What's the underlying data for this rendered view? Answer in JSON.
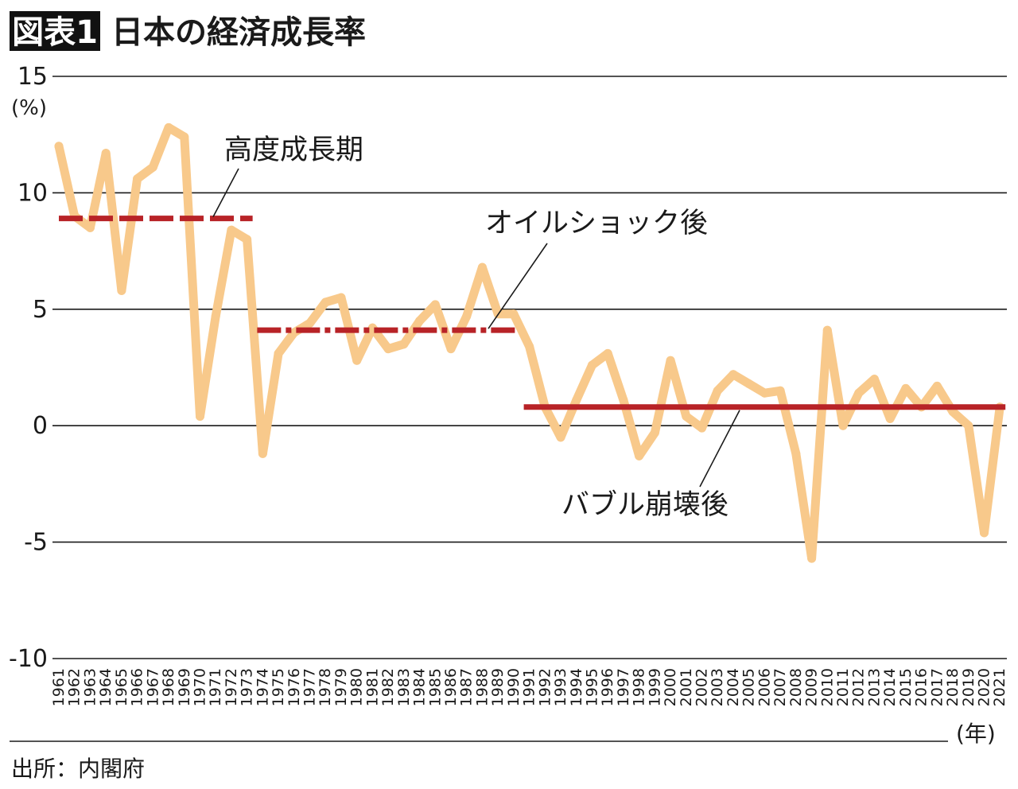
{
  "header": {
    "badge": "図表1",
    "title": "日本の経済成長率"
  },
  "chart_data": {
    "type": "line",
    "title": "日本の経済成長率",
    "ylabel": "(%)",
    "xlabel": "(年)",
    "ylim": [
      -10,
      15
    ],
    "yticks": [
      15,
      10,
      5,
      0,
      -5,
      -10
    ],
    "grid": true,
    "colors": {
      "series": "#f8c98b",
      "average": "#b82327"
    },
    "x": [
      "1961",
      "1962",
      "1963",
      "1964",
      "1965",
      "1966",
      "1967",
      "1968",
      "1969",
      "1970",
      "1971",
      "1972",
      "1973",
      "1974",
      "1975",
      "1976",
      "1977",
      "1978",
      "1979",
      "1980",
      "1981",
      "1982",
      "1983",
      "1984",
      "1985",
      "1986",
      "1987",
      "1988",
      "1989",
      "1990",
      "1991",
      "1992",
      "1993",
      "1994",
      "1995",
      "1996",
      "1997",
      "1998",
      "1999",
      "2000",
      "2001",
      "2002",
      "2003",
      "2004",
      "2005",
      "2006",
      "2007",
      "2008",
      "2009",
      "2010",
      "2011",
      "2012",
      "2013",
      "2014",
      "2015",
      "2016",
      "2017",
      "2018",
      "2019",
      "2020",
      "2021"
    ],
    "series": [
      {
        "values": [
          12.0,
          9.0,
          8.5,
          11.7,
          5.8,
          10.6,
          11.1,
          12.8,
          12.4,
          0.4,
          4.7,
          8.4,
          8.0,
          -1.2,
          3.1,
          4.0,
          4.4,
          5.3,
          5.5,
          2.8,
          4.2,
          3.3,
          3.5,
          4.5,
          5.2,
          3.3,
          4.7,
          6.8,
          4.8,
          4.8,
          3.4,
          0.8,
          -0.5,
          1.1,
          2.6,
          3.1,
          1.1,
          -1.3,
          -0.3,
          2.8,
          0.4,
          -0.1,
          1.5,
          2.2,
          1.8,
          1.4,
          1.5,
          -1.2,
          -5.7,
          4.1,
          0.0,
          1.4,
          2.0,
          0.3,
          1.6,
          0.8,
          1.7,
          0.6,
          0.0,
          -4.6,
          0.8
        ]
      }
    ],
    "averages": [
      {
        "label": "高度成長期",
        "start": "1961",
        "end": "1973",
        "value": 8.9,
        "style": "dashed"
      },
      {
        "label": "オイルショック後",
        "start": "1974",
        "end": "1990",
        "value": 4.1,
        "style": "dash-dot"
      },
      {
        "label": "バブル崩壊後",
        "start": "1991",
        "end": "2021",
        "value": 0.8,
        "style": "solid"
      }
    ]
  },
  "footer": {
    "source": "出所：内閣府"
  }
}
